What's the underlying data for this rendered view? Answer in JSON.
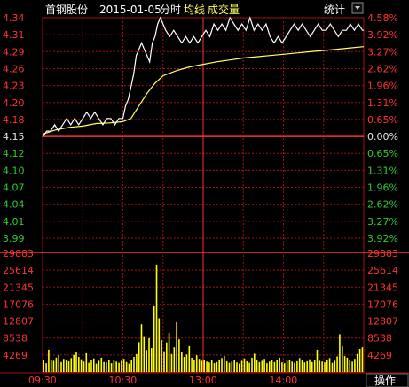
{
  "header": {
    "stock_name": "首钢股份",
    "date": "2015-01-05",
    "view_label": "分时",
    "avg_label": "均线",
    "volume_label": "成交量",
    "stats_button": "统计"
  },
  "footer": {
    "operate_button": "操作"
  },
  "colors": {
    "up": "#ff3333",
    "down": "#33cc33",
    "flat": "#e8e8e8",
    "price_line": "#ffffff",
    "avg_line": "#ffff66",
    "volume_bar": "#ffff00",
    "grid": "#a01010",
    "grid_mid": "#ff3030"
  },
  "chart_data": {
    "type": "line",
    "reference_price": 4.15,
    "price_ticks_left": [
      "4.34",
      "4.31",
      "4.29",
      "4.26",
      "4.23",
      "4.20",
      "4.18",
      "4.15",
      "4.12",
      "4.10",
      "4.07",
      "4.04",
      "4.01",
      "3.99"
    ],
    "percent_ticks_right": [
      "4.58%",
      "3.92%",
      "3.27%",
      "2.62%",
      "1.96%",
      "1.31%",
      "0.65%",
      "0.00%",
      "0.65%",
      "1.31%",
      "1.96%",
      "2.62%",
      "3.27%",
      "3.92%"
    ],
    "ylim": [
      3.99,
      4.34
    ],
    "time_ticks": [
      "09:30",
      "10:30",
      "13:00",
      "14:00"
    ],
    "volume_ticks": [
      "29883",
      "25614",
      "21345",
      "17076",
      "12807",
      "8538",
      "4269"
    ],
    "volume_ylim": [
      0,
      29883
    ],
    "price_points": [
      [
        0,
        4.15
      ],
      [
        3,
        4.16
      ],
      [
        6,
        4.16
      ],
      [
        9,
        4.17
      ],
      [
        12,
        4.16
      ],
      [
        15,
        4.17
      ],
      [
        18,
        4.18
      ],
      [
        21,
        4.17
      ],
      [
        24,
        4.18
      ],
      [
        27,
        4.17
      ],
      [
        30,
        4.18
      ],
      [
        33,
        4.19
      ],
      [
        36,
        4.18
      ],
      [
        39,
        4.19
      ],
      [
        42,
        4.18
      ],
      [
        45,
        4.17
      ],
      [
        48,
        4.18
      ],
      [
        51,
        4.18
      ],
      [
        54,
        4.17
      ],
      [
        57,
        4.18
      ],
      [
        60,
        4.18
      ],
      [
        62,
        4.2
      ],
      [
        64,
        4.21
      ],
      [
        66,
        4.23
      ],
      [
        68,
        4.25
      ],
      [
        70,
        4.28
      ],
      [
        72,
        4.29
      ],
      [
        74,
        4.3
      ],
      [
        76,
        4.29
      ],
      [
        78,
        4.28
      ],
      [
        80,
        4.27
      ],
      [
        82,
        4.3
      ],
      [
        84,
        4.31
      ],
      [
        86,
        4.33
      ],
      [
        88,
        4.34
      ],
      [
        90,
        4.33
      ],
      [
        92,
        4.32
      ],
      [
        95,
        4.31
      ],
      [
        98,
        4.32
      ],
      [
        101,
        4.31
      ],
      [
        104,
        4.3
      ],
      [
        107,
        4.31
      ],
      [
        110,
        4.3
      ],
      [
        113,
        4.31
      ],
      [
        116,
        4.3
      ],
      [
        119,
        4.31
      ],
      [
        122,
        4.32
      ],
      [
        125,
        4.31
      ],
      [
        128,
        4.33
      ],
      [
        131,
        4.32
      ],
      [
        134,
        4.33
      ],
      [
        137,
        4.32
      ],
      [
        140,
        4.34
      ],
      [
        143,
        4.33
      ],
      [
        146,
        4.32
      ],
      [
        149,
        4.33
      ],
      [
        152,
        4.32
      ],
      [
        155,
        4.34
      ],
      [
        158,
        4.32
      ],
      [
        161,
        4.33
      ],
      [
        164,
        4.32
      ],
      [
        167,
        4.33
      ],
      [
        170,
        4.31
      ],
      [
        173,
        4.3
      ],
      [
        176,
        4.31
      ],
      [
        179,
        4.3
      ],
      [
        182,
        4.31
      ],
      [
        185,
        4.32
      ],
      [
        188,
        4.33
      ],
      [
        191,
        4.32
      ],
      [
        194,
        4.33
      ],
      [
        197,
        4.32
      ],
      [
        200,
        4.31
      ],
      [
        203,
        4.32
      ],
      [
        206,
        4.33
      ],
      [
        209,
        4.32
      ],
      [
        212,
        4.32
      ],
      [
        215,
        4.33
      ],
      [
        218,
        4.32
      ],
      [
        221,
        4.31
      ],
      [
        224,
        4.32
      ],
      [
        227,
        4.32
      ],
      [
        230,
        4.33
      ],
      [
        233,
        4.32
      ],
      [
        236,
        4.33
      ],
      [
        239,
        4.32
      ],
      [
        240,
        4.32
      ]
    ],
    "avg_points": [
      [
        0,
        4.155
      ],
      [
        10,
        4.162
      ],
      [
        20,
        4.166
      ],
      [
        30,
        4.168
      ],
      [
        40,
        4.172
      ],
      [
        50,
        4.173
      ],
      [
        60,
        4.175
      ],
      [
        66,
        4.18
      ],
      [
        72,
        4.2
      ],
      [
        78,
        4.22
      ],
      [
        84,
        4.236
      ],
      [
        90,
        4.248
      ],
      [
        100,
        4.256
      ],
      [
        110,
        4.262
      ],
      [
        120,
        4.266
      ],
      [
        130,
        4.27
      ],
      [
        140,
        4.273
      ],
      [
        150,
        4.276
      ],
      [
        160,
        4.278
      ],
      [
        170,
        4.28
      ],
      [
        180,
        4.282
      ],
      [
        190,
        4.284
      ],
      [
        200,
        4.286
      ],
      [
        210,
        4.288
      ],
      [
        220,
        4.29
      ],
      [
        230,
        4.292
      ],
      [
        240,
        4.294
      ]
    ],
    "volume_values": [
      3000,
      2200,
      5600,
      3100,
      2800,
      3600,
      4200,
      2500,
      3300,
      2900,
      2700,
      3500,
      4300,
      5000,
      3800,
      3200,
      2600,
      4700,
      2300,
      2900,
      3400,
      2100,
      2800,
      3600,
      2500,
      2400,
      3100,
      2200,
      3000,
      2600,
      2300,
      2800,
      3300,
      2500,
      2100,
      2900,
      3800,
      4500,
      7500,
      12000,
      9000,
      5500,
      8500,
      6000,
      16500,
      27000,
      13500,
      8000,
      5200,
      7400,
      9800,
      4500,
      6200,
      12500,
      8200,
      5000,
      3800,
      4400,
      6500,
      3600,
      2900,
      4200,
      3300,
      2800,
      3100,
      2600,
      2400,
      3000,
      2200,
      2500,
      2900,
      3500,
      4000,
      2700,
      2300,
      2600,
      3100,
      2400,
      2100,
      2800,
      3400,
      2700,
      2300,
      3600,
      4600,
      3000,
      2500,
      2800,
      3300,
      2200,
      2600,
      3000,
      2500,
      2900,
      3600,
      2400,
      2200,
      2800,
      3100,
      2600,
      2300,
      2700,
      3500,
      2900,
      2400,
      2700,
      3200,
      2500,
      2900,
      5600,
      2800,
      2600,
      2400,
      3100,
      3500,
      2300,
      2800,
      3900,
      9500,
      6500,
      4000,
      3600,
      3000,
      2600,
      3300,
      4500,
      5800,
      6200
    ]
  }
}
